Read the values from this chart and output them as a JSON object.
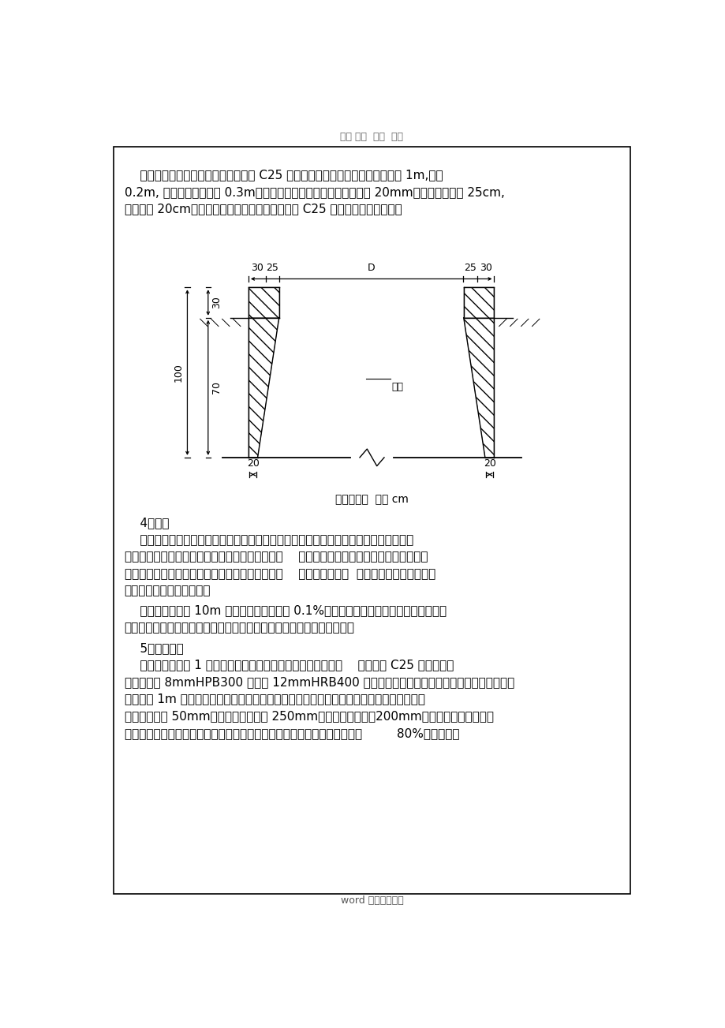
{
  "page_bg": "#ffffff",
  "border_color": "#000000",
  "text_color": "#000000",
  "header_text": "范文 范例  指导  学习",
  "para1_lines": [
    "    根据桩位线开挖锁口位置，锁口采用 C25 钢筋混凝土（钢筋布置见附图），高 1m,壁厚",
    "0.2m, 锁口应高于原地面 0.3m。锁口中心与设计轴线偏差不得大于 20mm。锁口顶部壁厚 25cm,",
    "底部壁厚 20cm。混凝土机械拌置或搅拌站运送。 C25 混凝土配料单附后表。"
  ],
  "caption": "锁口示意图  单位 cm",
  "section4_title": "    4、挖孔",
  "para4_lines": [
    "    配备安全帽、安全绳的工作人员下至孔内，采用小铁锹、钢钎、铁铲等便携工具人力挖",
    "孔，井上工作人员利用电动卷扬机提升吊桶出土，    吊运弃土时孔内人员与孔外人员用对讲机",
    "联络，当孔内施工人员躲进铁制安全防护架内后，    才能起吊吊桶。  碴土斗车运至临时堆土位",
    "置，自卸车集中装运弃土。"
  ],
  "para5_lines": [
    "    当挖孔深度超过 10m 或二氧化碳含量超过 0.1%时，增加通风设备进行通风换气。在井",
    "口附近用通风机连接通风管将新鲜空气输送到井内，并把风管同向孔底。"
  ],
  "section5_title": "    5、护壁施工",
  "para6_lines": [
    "    锁口每开挖桩孔 1 米深后，立即支立钢模并现浇混凝土护壁，    护壁采用 C25 混凝土，混",
    "凝土中应配 8mmHPB300 钢筋和 12mmHRB400 钢筋，人工持小型插入式振捣棒振捣密实。挖孔",
    "时每挖深 1m 进行护壁，护壁采用内齿式护壁法（见下图），结构形式采用内八字搭接，搭",
    "接长度不小于 50mm，井圈节顶部壁厚 250mm，井圈节底部壁厚200mm。其结构特点为护壁外",
    "侧为等直径圆柱，面内侧面为圆锥台。当上节护壁混凝土强度达到设计强度         80%后，可进行"
  ],
  "footer_text": "word 版本整理分享"
}
